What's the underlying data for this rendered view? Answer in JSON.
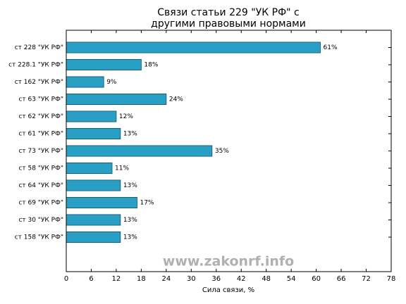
{
  "chart_data": {
    "type": "barh",
    "title": [
      "Связи статьи 229 \"УК РФ\" с",
      "другими правовыми нормами"
    ],
    "categories": [
      "ст 228 \"УК РФ\"",
      "ст 228.1 \"УК РФ\"",
      "ст 162 \"УК РФ\"",
      "ст 63 \"УК РФ\"",
      "ст 62 \"УК РФ\"",
      "ст 61 \"УК РФ\"",
      "ст 73 \"УК РФ\"",
      "ст 58 \"УК РФ\"",
      "ст 64 \"УК РФ\"",
      "ст 69 \"УК РФ\"",
      "ст 30 \"УК РФ\"",
      "ст 158 \"УК РФ\""
    ],
    "values": [
      61,
      18,
      9,
      24,
      12,
      13,
      35,
      11,
      13,
      17,
      13,
      13
    ],
    "value_labels": [
      "61%",
      "18%",
      "9%",
      "24%",
      "12%",
      "13%",
      "35%",
      "11%",
      "13%",
      "17%",
      "13%",
      "13%"
    ],
    "color": "#2a9fc6",
    "xlabel": "Сила связи, %",
    "xlim": [
      0,
      78
    ],
    "xticks": [
      0,
      6,
      12,
      18,
      24,
      30,
      36,
      42,
      48,
      54,
      60,
      66,
      72,
      78
    ],
    "watermark": "www.zakonrf.info"
  }
}
